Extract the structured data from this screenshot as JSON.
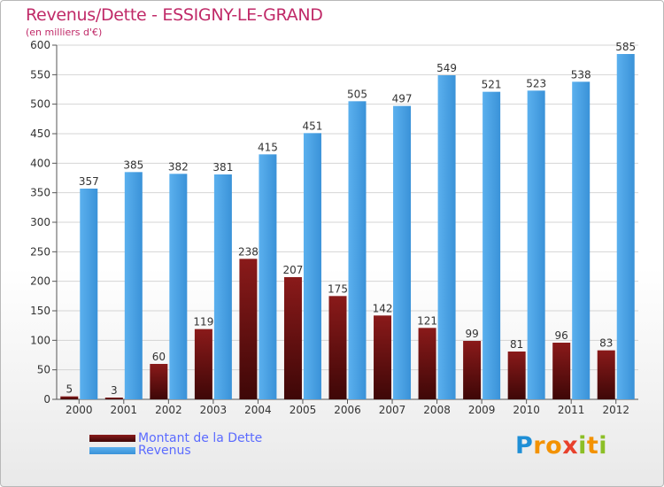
{
  "header": {
    "title": "Revenus/Dette - ESSIGNY-LE-GRAND",
    "subtitle": "(en milliers d'€)"
  },
  "logo": {
    "letters": [
      {
        "char": "P",
        "color": "#1f8fd6"
      },
      {
        "char": "r",
        "color": "#f39200"
      },
      {
        "char": "o",
        "color": "#f39200"
      },
      {
        "char": "x",
        "color": "#e8412c"
      },
      {
        "char": "i",
        "color": "#8cbf26"
      },
      {
        "char": "t",
        "color": "#f39200"
      },
      {
        "char": "i",
        "color": "#8cbf26"
      }
    ]
  },
  "chart_data": {
    "type": "bar",
    "title": "Revenus/Dette - ESSIGNY-LE-GRAND",
    "subtitle": "(en milliers d'€)",
    "xlabel": "",
    "ylabel": "(en milliers d'€)",
    "ylim": [
      0,
      600
    ],
    "yticks": [
      0,
      50,
      100,
      150,
      200,
      250,
      300,
      350,
      400,
      450,
      500,
      550,
      600
    ],
    "grid": true,
    "legend_position": "bottom-left",
    "categories": [
      "2000",
      "2001",
      "2002",
      "2003",
      "2004",
      "2005",
      "2006",
      "2007",
      "2008",
      "2009",
      "2010",
      "2011",
      "2012"
    ],
    "series": [
      {
        "name": "Montant de la Dette",
        "color": "#7a1414",
        "values": [
          5,
          3,
          60,
          119,
          238,
          207,
          175,
          142,
          121,
          99,
          81,
          96,
          83
        ]
      },
      {
        "name": "Revenus",
        "color": "#4aa3e6",
        "values": [
          357,
          385,
          382,
          381,
          415,
          451,
          505,
          497,
          549,
          521,
          523,
          538,
          585
        ]
      }
    ]
  }
}
